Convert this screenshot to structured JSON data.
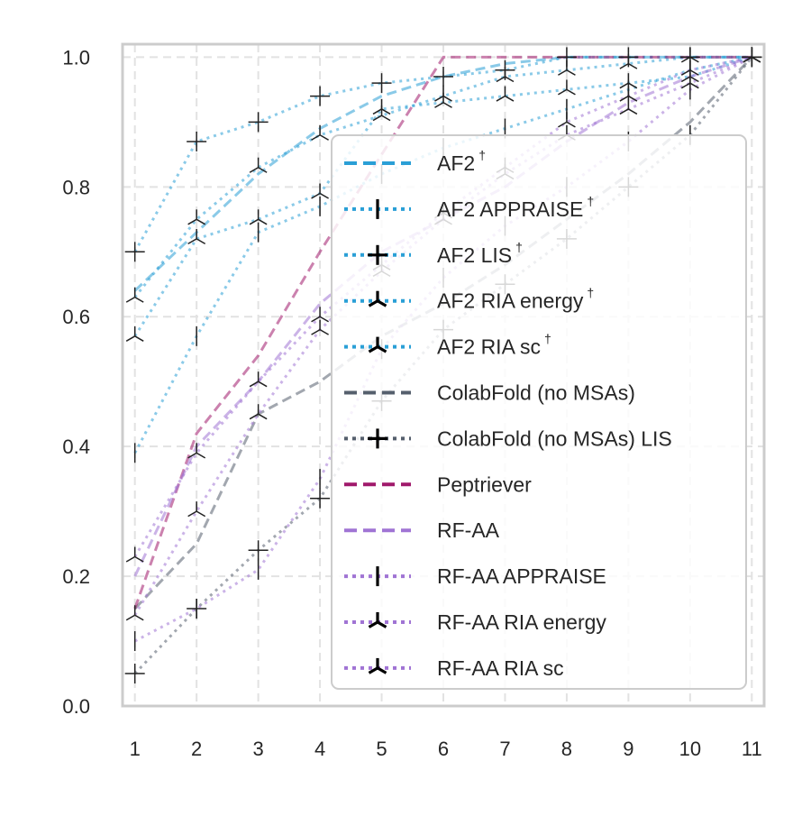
{
  "chart_data": {
    "type": "line",
    "title": "",
    "xlabel": "",
    "ylabel": "",
    "x": [
      1,
      2,
      3,
      4,
      5,
      6,
      7,
      8,
      9,
      10,
      11
    ],
    "xlim": [
      0.8,
      11.2
    ],
    "ylim": [
      0.0,
      1.02
    ],
    "xticks": [
      "1",
      "2",
      "3",
      "4",
      "5",
      "6",
      "7",
      "8",
      "9",
      "10",
      "11"
    ],
    "yticks": [
      "0.0",
      "0.2",
      "0.4",
      "0.6",
      "0.8",
      "1.0"
    ],
    "grid": true,
    "legend_position": "lower-right",
    "series": [
      {
        "name": "AF2",
        "sup": "†",
        "color": "#2a9fd6",
        "dash": "dashed",
        "marker": "none",
        "values": [
          0.64,
          0.73,
          0.82,
          0.89,
          0.94,
          0.97,
          0.99,
          1.0,
          1.0,
          1.0,
          1.0
        ]
      },
      {
        "name": "AF2 APPRAISE",
        "sup": "†",
        "color": "#2a9fd6",
        "dash": "dotted",
        "marker": "vline",
        "values": [
          0.39,
          0.57,
          0.73,
          0.77,
          0.82,
          0.86,
          0.89,
          0.92,
          0.95,
          0.98,
          1.0
        ]
      },
      {
        "name": "AF2 LIS",
        "sup": "†",
        "color": "#2a9fd6",
        "dash": "dotted",
        "marker": "plus",
        "values": [
          0.7,
          0.87,
          0.9,
          0.94,
          0.96,
          0.97,
          0.98,
          1.0,
          1.0,
          1.0,
          1.0
        ]
      },
      {
        "name": "AF2 RIA energy",
        "sup": "†",
        "color": "#2a9fd6",
        "dash": "dotted",
        "marker": "tri_up",
        "values": [
          0.57,
          0.72,
          0.75,
          0.79,
          0.92,
          0.93,
          0.94,
          0.95,
          0.96,
          0.97,
          1.0
        ]
      },
      {
        "name": "AF2 RIA sc",
        "sup": "†",
        "color": "#2a9fd6",
        "dash": "dotted",
        "marker": "tri_down",
        "values": [
          0.63,
          0.75,
          0.83,
          0.88,
          0.91,
          0.94,
          0.97,
          0.98,
          0.99,
          1.0,
          1.0
        ]
      },
      {
        "name": "ColabFold (no MSAs)",
        "sup": "",
        "color": "#555f6d",
        "dash": "dashed",
        "marker": "none",
        "values": [
          0.15,
          0.25,
          0.45,
          0.5,
          0.57,
          0.62,
          0.68,
          0.75,
          0.82,
          0.9,
          1.0
        ]
      },
      {
        "name": "ColabFold (no MSAs) LIS",
        "sup": "",
        "color": "#555f6d",
        "dash": "dotted",
        "marker": "plus",
        "values": [
          0.05,
          0.15,
          0.24,
          0.32,
          0.47,
          0.58,
          0.65,
          0.72,
          0.8,
          0.88,
          1.0
        ]
      },
      {
        "name": "Peptriever",
        "sup": "",
        "color": "#a0196b",
        "dash": "dashed",
        "marker": "none",
        "values": [
          0.15,
          0.42,
          0.54,
          0.7,
          0.85,
          1.0,
          1.0,
          1.0,
          1.0,
          1.0,
          1.0
        ]
      },
      {
        "name": "RF-AA",
        "sup": "",
        "color": "#a074d4",
        "dash": "dashed",
        "marker": "none",
        "values": [
          0.2,
          0.4,
          0.5,
          0.62,
          0.7,
          0.75,
          0.8,
          0.87,
          0.93,
          0.97,
          1.0
        ]
      },
      {
        "name": "RF-AA APPRAISE",
        "sup": "",
        "color": "#a074d4",
        "dash": "dotted",
        "marker": "vline",
        "values": [
          0.1,
          0.15,
          0.21,
          0.35,
          0.55,
          0.66,
          0.74,
          0.8,
          0.87,
          0.95,
          1.0
        ]
      },
      {
        "name": "RF-AA RIA energy",
        "sup": "",
        "color": "#a074d4",
        "dash": "dotted",
        "marker": "tri_up",
        "values": [
          0.14,
          0.3,
          0.45,
          0.58,
          0.67,
          0.75,
          0.82,
          0.88,
          0.92,
          0.96,
          1.0
        ]
      },
      {
        "name": "RF-AA RIA sc",
        "sup": "",
        "color": "#a074d4",
        "dash": "dotted",
        "marker": "tri_down",
        "values": [
          0.23,
          0.39,
          0.5,
          0.6,
          0.68,
          0.76,
          0.83,
          0.9,
          0.94,
          0.98,
          1.0
        ]
      }
    ]
  }
}
